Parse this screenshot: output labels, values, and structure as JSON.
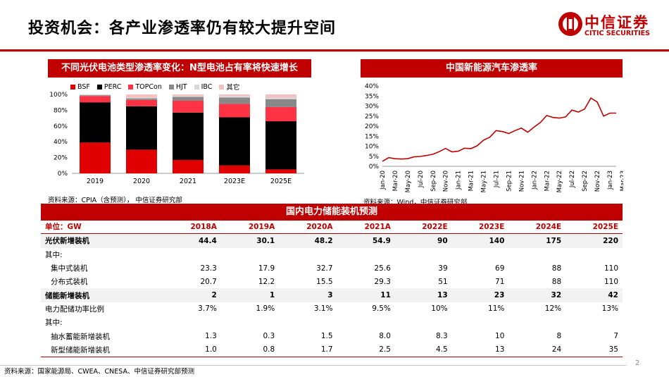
{
  "page": {
    "title": "投资机会：各产业渗透率仍有较大提升空间",
    "page_number": "2",
    "footer_source": "资料来源：国家能源局、CWEA、CNESA、中信证券研究部预测"
  },
  "logo": {
    "cn": "中信证券",
    "en": "CITIC SECURITIES"
  },
  "left_panel": {
    "title": "不同光伏电池类型渗透率变化：N型电池占有率将快速增长",
    "source": "资料来源：CPIA（含预测），  中信证券研究部"
  },
  "right_panel": {
    "title": "中国新能源汽车渗透率",
    "source": "资料来源：Wind，中信证券研究部"
  },
  "table_panel": {
    "title": "国内电力储能装机预测",
    "header": [
      "单位：GW",
      "2018A",
      "2019A",
      "2020A",
      "2021A",
      "2022E",
      "2023E",
      "2024E",
      "2025E"
    ],
    "rows": [
      {
        "label": "光伏新增装机",
        "values": [
          "44.4",
          "30.1",
          "48.2",
          "54.9",
          "90",
          "140",
          "175",
          "220"
        ],
        "style": "bold"
      },
      {
        "label": "其中:",
        "values": [
          "",
          "",
          "",
          "",
          "",
          "",
          "",
          ""
        ],
        "style": "normal"
      },
      {
        "label": "集中式装机",
        "values": [
          "23.3",
          "17.9",
          "32.7",
          "25.6",
          "39",
          "69",
          "88",
          "110"
        ],
        "style": "indent"
      },
      {
        "label": "分布式装机",
        "values": [
          "20.7",
          "12.2",
          "15.5",
          "29.3",
          "51",
          "71",
          "88",
          "110"
        ],
        "style": "indent"
      },
      {
        "label": "储能新增装机",
        "values": [
          "2",
          "1",
          "3",
          "11",
          "13",
          "23",
          "32",
          "42"
        ],
        "style": "bold"
      },
      {
        "label": "电力配储功率比例",
        "values": [
          "3.7%",
          "1.9%",
          "3.1%",
          "9.5%",
          "10%",
          "11%",
          "12%",
          "13%"
        ],
        "style": "normal"
      },
      {
        "label": "其中:",
        "values": [
          "",
          "",
          "",
          "",
          "",
          "",
          "",
          ""
        ],
        "style": "normal"
      },
      {
        "label": "抽水蓄能新增装机",
        "values": [
          "1.3",
          "0.3",
          "1.5",
          "8.0",
          "8.3",
          "10",
          "8",
          "7"
        ],
        "style": "indent"
      },
      {
        "label": "新型储能新增装机",
        "values": [
          "1.0",
          "0.8",
          "1.7",
          "2.5",
          "4.5",
          "13",
          "24",
          "35"
        ],
        "style": "indent"
      }
    ]
  },
  "chart_data": [
    {
      "type": "bar",
      "stacked": true,
      "title": "不同光伏电池类型渗透率变化：N型电池占有率将快速增长",
      "categories": [
        "2019",
        "2020",
        "2021",
        "2023E",
        "2025E"
      ],
      "ylim": [
        0,
        100
      ],
      "yticks": [
        "0%",
        "20%",
        "40%",
        "60%",
        "80%",
        "100%"
      ],
      "series": [
        {
          "name": "BSF",
          "color": "#e00000",
          "values": [
            39,
            30,
            17,
            10,
            5
          ]
        },
        {
          "name": "PERC",
          "color": "#000000",
          "values": [
            51,
            55,
            60,
            61,
            61
          ]
        },
        {
          "name": "TOPCon",
          "color": "#ff3344",
          "values": [
            8,
            8,
            15,
            17,
            18
          ]
        },
        {
          "name": "HJT",
          "color": "#888888",
          "values": [
            1,
            2,
            5,
            8,
            10
          ]
        },
        {
          "name": "IBC",
          "color": "#d9d9d9",
          "values": [
            1,
            1,
            1,
            2,
            2
          ]
        },
        {
          "name": "其它",
          "color": "#f4c0c0",
          "values": [
            0,
            4,
            2,
            2,
            4
          ]
        }
      ]
    },
    {
      "type": "line",
      "title": "中国新能源汽车渗透率",
      "ylim": [
        0,
        40
      ],
      "yticks": [
        "0%",
        "5%",
        "10%",
        "15%",
        "20%",
        "25%",
        "30%",
        "35%",
        "40%"
      ],
      "xticks": [
        "Jan-20",
        "Mar-20",
        "May-20",
        "Jul-20",
        "Sep-20",
        "Nov-20",
        "Jan-21",
        "Mar-21",
        "May-21",
        "Jul-21",
        "Sep-21",
        "Nov-21",
        "Jan-22",
        "Mar-22",
        "May-22",
        "Jul-22",
        "Sep-22",
        "Nov-22",
        "Jan-23",
        "Mar-23"
      ],
      "color": "#c00000",
      "values": [
        2.5,
        4.3,
        3.8,
        3.6,
        3.8,
        4.7,
        4.9,
        5.4,
        6.0,
        7.3,
        8.9,
        7.2,
        7.5,
        9.0,
        8.8,
        10.2,
        13.0,
        14.5,
        17.8,
        17.3,
        16.3,
        17.8,
        19.0,
        17.0,
        19.5,
        21.8,
        25.3,
        24.3,
        24.0,
        24.6,
        28.0,
        27.0,
        28.5,
        34.0,
        32.0,
        25.0,
        26.5,
        26.5
      ]
    }
  ]
}
